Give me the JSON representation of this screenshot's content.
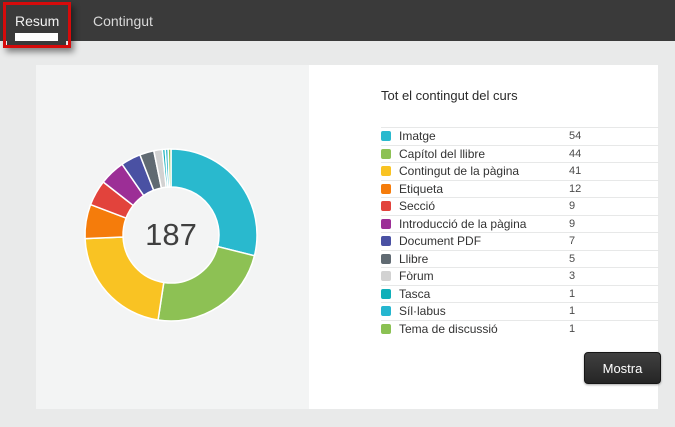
{
  "tabs": [
    {
      "label": "Resum",
      "active": true
    },
    {
      "label": "Contingut",
      "active": false
    }
  ],
  "annotation": {
    "shape": "red-rectangle-highlight",
    "target": "Resum tab",
    "color": "#d60b0b"
  },
  "legend": {
    "title": "Tot el contingut del curs"
  },
  "actions": {
    "show_button_label": "Mostra"
  },
  "chart_data": {
    "type": "pie",
    "style": "donut",
    "center_total": "187",
    "total": 187,
    "legend_position": "right",
    "series": [
      {
        "label": "Imatge",
        "value": 54,
        "color": "#29b9ce"
      },
      {
        "label": "Capítol del llibre",
        "value": 44,
        "color": "#8dc154"
      },
      {
        "label": "Contingut de la pàgina",
        "value": 41,
        "color": "#f9c323"
      },
      {
        "label": "Etiqueta",
        "value": 12,
        "color": "#f57c0b"
      },
      {
        "label": "Secció",
        "value": 9,
        "color": "#e2433c"
      },
      {
        "label": "Introducció de la pàgina",
        "value": 9,
        "color": "#9c2e96"
      },
      {
        "label": "Document PDF",
        "value": 7,
        "color": "#4a51a3"
      },
      {
        "label": "Llibre",
        "value": 5,
        "color": "#606a72"
      },
      {
        "label": "Fòrum",
        "value": 3,
        "color": "#d2d2d2"
      },
      {
        "label": "Tasca",
        "value": 1,
        "color": "#0fafb9"
      },
      {
        "label": "Síl·labus",
        "value": 1,
        "color": "#25b6cf"
      },
      {
        "label": "Tema de discussió",
        "value": 1,
        "color": "#8bc153"
      }
    ]
  }
}
